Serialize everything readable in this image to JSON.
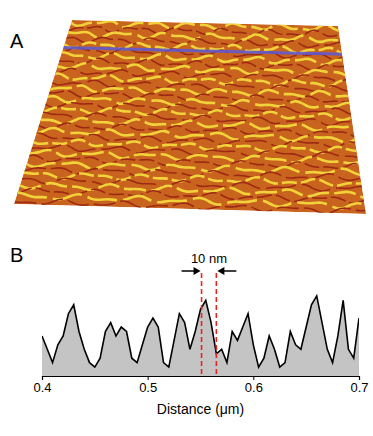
{
  "figure": {
    "panels": [
      "A",
      "B"
    ]
  },
  "chart_data": {
    "type": "area",
    "x_label": "Distance (μm)",
    "x": [
      0.4,
      0.405,
      0.41,
      0.415,
      0.42,
      0.425,
      0.43,
      0.435,
      0.44,
      0.445,
      0.45,
      0.455,
      0.46,
      0.465,
      0.47,
      0.475,
      0.48,
      0.485,
      0.49,
      0.495,
      0.5,
      0.505,
      0.51,
      0.515,
      0.52,
      0.525,
      0.53,
      0.535,
      0.54,
      0.545,
      0.55,
      0.555,
      0.56,
      0.565,
      0.57,
      0.575,
      0.58,
      0.585,
      0.59,
      0.595,
      0.6,
      0.605,
      0.61,
      0.615,
      0.62,
      0.625,
      0.63,
      0.635,
      0.64,
      0.645,
      0.65,
      0.655,
      0.66,
      0.665,
      0.67,
      0.675,
      0.68,
      0.685,
      0.69,
      0.695,
      0.7
    ],
    "values": [
      0.45,
      0.3,
      0.15,
      0.35,
      0.45,
      0.7,
      0.8,
      0.5,
      0.3,
      0.15,
      0.1,
      0.2,
      0.5,
      0.6,
      0.45,
      0.55,
      0.5,
      0.2,
      0.15,
      0.35,
      0.55,
      0.65,
      0.55,
      0.15,
      0.1,
      0.4,
      0.7,
      0.6,
      0.3,
      0.5,
      0.75,
      0.85,
      0.6,
      0.25,
      0.3,
      0.15,
      0.5,
      0.4,
      0.55,
      0.7,
      0.35,
      0.1,
      0.2,
      0.45,
      0.3,
      0.1,
      0.15,
      0.5,
      0.35,
      0.3,
      0.55,
      0.8,
      0.9,
      0.6,
      0.3,
      0.15,
      0.45,
      0.85,
      0.3,
      0.2,
      0.65
    ],
    "color": "#000000",
    "xlim": [
      0.4,
      0.7
    ],
    "xticks": [
      0.4,
      0.5,
      0.6,
      0.7
    ],
    "ylim": [
      0,
      1
    ],
    "tick_labels": "x",
    "annotations": [
      {
        "text": "10 nm",
        "x": [
          0.551,
          0.565
        ]
      }
    ]
  }
}
